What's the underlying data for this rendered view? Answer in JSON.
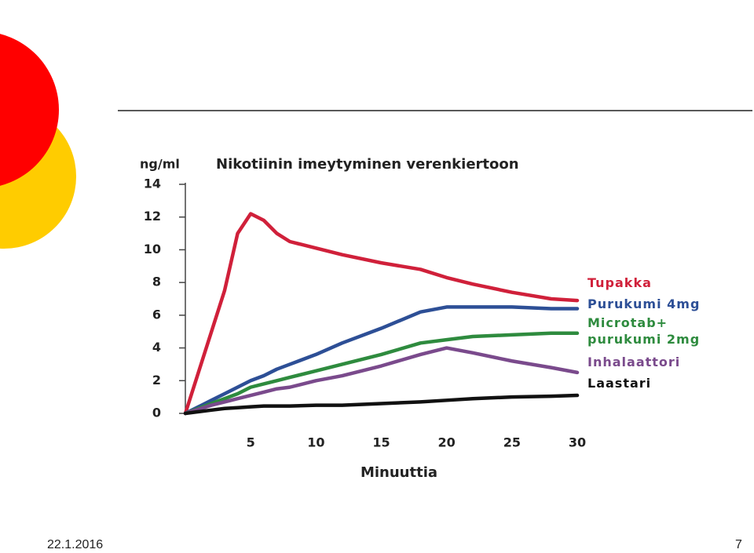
{
  "chart_data": {
    "type": "line",
    "title": "Nikotiinin imeytyminen verenkiertoon",
    "y_label": "ng/ml",
    "x_label": "Minuuttia",
    "x": [
      0,
      1,
      2,
      3,
      4,
      5,
      6,
      7,
      8,
      10,
      12,
      15,
      18,
      20,
      22,
      25,
      28,
      30
    ],
    "series": [
      {
        "name": "Tupakka",
        "color": "#d0203a",
        "values": [
          0,
          2.5,
          5,
          7.5,
          11,
          12.2,
          11.8,
          11,
          10.5,
          10.1,
          9.7,
          9.2,
          8.8,
          8.3,
          7.9,
          7.4,
          7,
          6.9
        ]
      },
      {
        "name": "Purukumi 4mg",
        "color": "#2d4f96",
        "values": [
          0,
          0.4,
          0.8,
          1.2,
          1.6,
          2,
          2.3,
          2.7,
          3,
          3.6,
          4.3,
          5.2,
          6.2,
          6.5,
          6.5,
          6.5,
          6.4,
          6.4
        ]
      },
      {
        "name": "Microtab+\npurukumi 2mg",
        "color": "#2e8b3e",
        "values": [
          0,
          0.3,
          0.6,
          0.9,
          1.2,
          1.6,
          1.8,
          2,
          2.2,
          2.6,
          3,
          3.6,
          4.3,
          4.5,
          4.7,
          4.8,
          4.9,
          4.9
        ]
      },
      {
        "name": "Inhalaattori",
        "color": "#7a4a8c",
        "values": [
          0,
          0.25,
          0.5,
          0.7,
          0.9,
          1.1,
          1.3,
          1.5,
          1.6,
          2,
          2.3,
          2.9,
          3.6,
          4,
          3.7,
          3.2,
          2.8,
          2.5
        ]
      },
      {
        "name": "Laastari",
        "color": "#111111",
        "values": [
          0,
          0.1,
          0.2,
          0.3,
          0.35,
          0.4,
          0.45,
          0.45,
          0.45,
          0.5,
          0.5,
          0.6,
          0.7,
          0.8,
          0.9,
          1,
          1.05,
          1.1
        ]
      }
    ],
    "xlim": [
      0,
      30
    ],
    "xticks": [
      5,
      10,
      15,
      20,
      25,
      30
    ],
    "ylim": [
      0,
      14
    ],
    "yticks": [
      0,
      2,
      4,
      6,
      8,
      10,
      12,
      14
    ]
  },
  "footer": {
    "date": "22.1.2016",
    "page": "7"
  }
}
